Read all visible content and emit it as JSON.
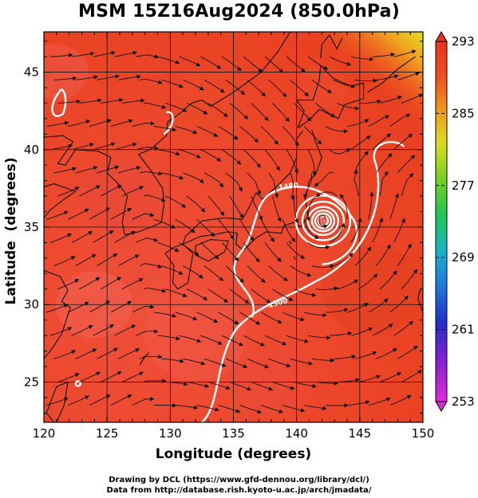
{
  "title": "MSM 15Z16Aug2024 (850.0hPa)",
  "axes": {
    "xlabel": "Longitude (degrees)",
    "ylabel": "Latitude  (degrees)",
    "xticks": [
      "120",
      "125",
      "130",
      "135",
      "140",
      "145",
      "150"
    ],
    "yticks": [
      "25",
      "30",
      "35",
      "40",
      "45"
    ],
    "xlim": [
      120,
      150
    ],
    "ylim": [
      22.4,
      47.6
    ]
  },
  "colorbar": {
    "labels": [
      "293",
      "285",
      "277",
      "269",
      "261",
      "253"
    ],
    "range": [
      253,
      293
    ],
    "colors": [
      "#d61cd6",
      "#2020c8",
      "#1e64dc",
      "#19b4d2",
      "#1ec850",
      "#78dc1e",
      "#f0e61e",
      "#f0a01e",
      "#f05a1e",
      "#e62d1e",
      "#f04646"
    ]
  },
  "contour_labels": {
    "upper": "1480",
    "lower": "1500"
  },
  "typhoon_center": {
    "lon": 142.1,
    "lat": 35.4
  },
  "credits": {
    "line1": "Drawing by DCL (https://www.gfd-dennou.org/library/dcl/)",
    "line2": "Data from http://database.rish.kyoto-u.ac.jp/arch/jmadata/"
  }
}
